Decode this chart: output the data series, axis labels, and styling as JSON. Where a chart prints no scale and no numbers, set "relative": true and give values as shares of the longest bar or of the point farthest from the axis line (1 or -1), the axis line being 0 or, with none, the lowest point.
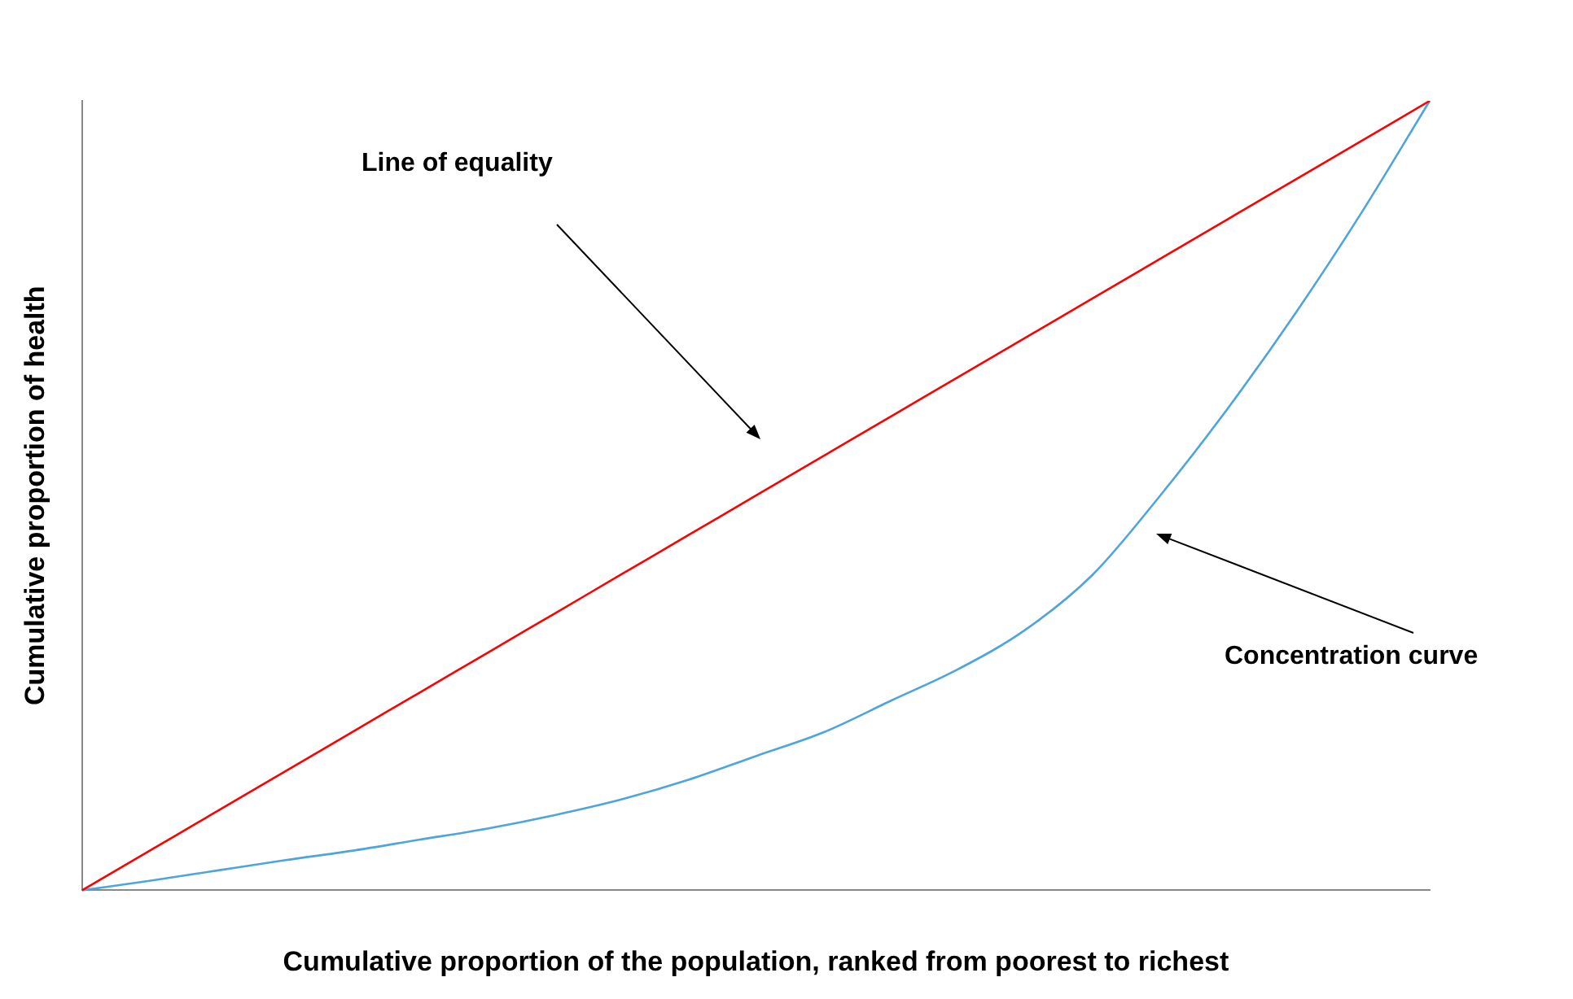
{
  "chart_data": {
    "type": "line",
    "relative": true,
    "xlabel": "Cumulative proportion of the population, ranked from poorest to richest",
    "ylabel": "Cumulative proportion of health",
    "categories": [
      null,
      null,
      null,
      null,
      null,
      null,
      null,
      null,
      null,
      null,
      null,
      null,
      null,
      null,
      null,
      null,
      null,
      null,
      null,
      null,
      null
    ],
    "series": [
      {
        "color": "#ff0000",
        "values": [
          0,
          0.05,
          0.1,
          0.15,
          0.2,
          0.25,
          0.3,
          0.35,
          0.4,
          0.45,
          0.5,
          0.55,
          0.6,
          0.65,
          0.7,
          0.75,
          0.8,
          0.85,
          0.9,
          0.95,
          1
        ]
      },
      {
        "color": "#4ea5dd",
        "values": [
          0,
          0.012,
          0.025,
          0.038,
          0.05,
          0.064,
          0.078,
          0.095,
          0.115,
          0.14,
          0.17,
          0.2,
          0.24,
          0.28,
          0.33,
          0.4,
          0.5,
          0.61,
          0.73,
          0.86,
          1
        ]
      }
    ],
    "annotations": [
      "Line of equality",
      "Concentration curve"
    ],
    "legend": false,
    "grid": false,
    "marker": "none",
    "line_style": "solid"
  }
}
